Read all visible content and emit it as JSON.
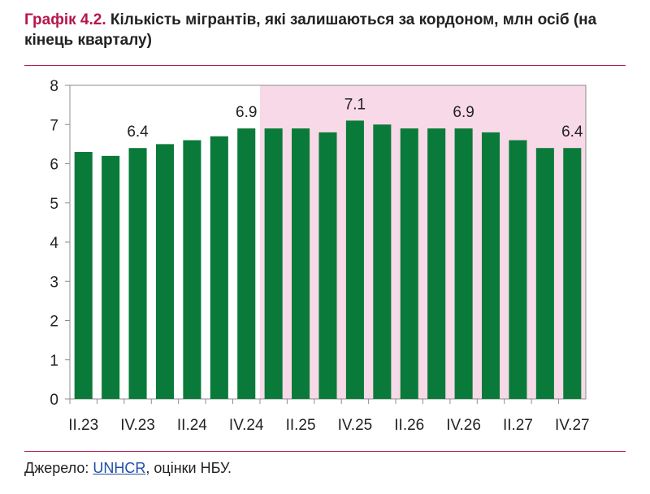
{
  "header": {
    "title_lead": "Графік 4.2.",
    "title_rest": "Кількість мігрантів, які залишаються за кордоном, млн осіб (на кінець кварталу)"
  },
  "footer": {
    "source_prefix": "Джерело: ",
    "source_link": "UNHCR",
    "source_suffix": ", оцінки НБУ."
  },
  "colors": {
    "bar": "#0a7a3a",
    "forecast_band": "#f7d9e7",
    "accent": "#b5174b"
  },
  "chart_data": {
    "type": "bar",
    "title": "Кількість мігрантів, які залишаються за кордоном, млн осіб (на кінець кварталу)",
    "categories": [
      "II.23",
      "III.23",
      "IV.23",
      "I.24",
      "II.24",
      "III.24",
      "IV.24",
      "I.25",
      "II.25",
      "III.25",
      "IV.25",
      "I.26",
      "II.26",
      "III.26",
      "IV.26",
      "I.27",
      "II.27",
      "III.27",
      "IV.27"
    ],
    "x_tick_labels": [
      "II.23",
      "IV.23",
      "II.24",
      "IV.24",
      "II.25",
      "IV.25",
      "II.26",
      "IV.26",
      "II.27",
      "IV.27"
    ],
    "values": [
      6.3,
      6.2,
      6.4,
      6.5,
      6.6,
      6.7,
      6.9,
      6.9,
      6.9,
      6.8,
      7.1,
      7.0,
      6.9,
      6.9,
      6.9,
      6.8,
      6.6,
      6.4,
      6.4
    ],
    "data_labels": [
      {
        "category": "IV.23",
        "text": "6.4"
      },
      {
        "category": "IV.24",
        "text": "6.9"
      },
      {
        "category": "IV.25",
        "text": "7.1"
      },
      {
        "category": "IV.26",
        "text": "6.9"
      },
      {
        "category": "IV.27",
        "text": "6.4"
      }
    ],
    "forecast_start": "I.25",
    "ylim": [
      0,
      8
    ],
    "yticks": [
      "0",
      "1",
      "2",
      "3",
      "4",
      "5",
      "6",
      "7",
      "8"
    ],
    "xlabel": "",
    "ylabel": ""
  }
}
